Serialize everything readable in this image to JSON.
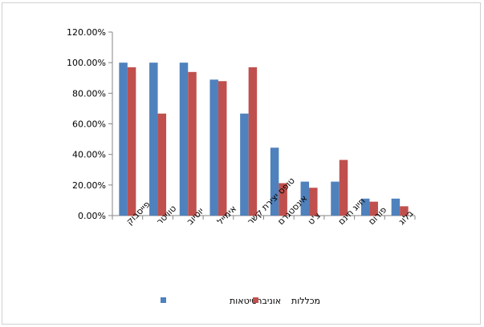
{
  "chart_data": {
    "type": "bar",
    "categories": [
      "פייסבוק",
      "טוויטר",
      "יוטיוב",
      "אימייל",
      "טופס יצירת קשר",
      "אינסטגרם",
      "צ'ט",
      "חיוג חינם",
      "פורום",
      "בלוג"
    ],
    "series": [
      {
        "name": "אוניברסיטאות",
        "color": "#4f81bd",
        "values": [
          1.0,
          1.0,
          1.0,
          0.889,
          0.667,
          0.444,
          0.222,
          0.222,
          0.111,
          0.111
        ]
      },
      {
        "name": "מכללות",
        "color": "#c0504d",
        "values": [
          0.97,
          0.667,
          0.939,
          0.879,
          0.97,
          0.212,
          0.182,
          0.364,
          0.091,
          0.061
        ]
      }
    ],
    "yticks": [
      "0.00%",
      "20.00%",
      "40.00%",
      "60.00%",
      "80.00%",
      "100.00%",
      "120.00%"
    ],
    "ylim": [
      0,
      1.2
    ],
    "grid": false,
    "legend_position": "bottom",
    "title": "",
    "xlabel": "",
    "ylabel": ""
  }
}
